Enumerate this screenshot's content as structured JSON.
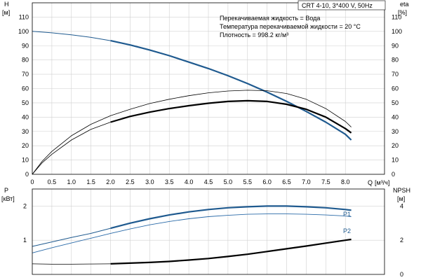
{
  "header": {
    "title": "CRT 4-10, 3*400 V, 50Hz",
    "liquid": "Перекачиваемая жидкость = Вода",
    "temperature": "Температура перекачиваемой жидкости = 20 °C",
    "density": "Плотность = 998.2 кг/м³"
  },
  "colors": {
    "primary": "#1f5a8f",
    "thin_primary": "#2a6aa8",
    "black": "#000000"
  },
  "chart_data": [
    {
      "type": "line",
      "panel": "head-efficiency",
      "xlabel": "Q [м³/ч]",
      "xlabel_text": "Q",
      "xlabel_unit": "[м³/ч]",
      "x_ticks": [
        "0",
        "0.5",
        "1.0",
        "1.5",
        "2.0",
        "2.5",
        "3.0",
        "3.5",
        "4.0",
        "4.5",
        "5.0",
        "5.5",
        "6.0",
        "6.5",
        "7.0",
        "7.5",
        "8.0"
      ],
      "xlim": [
        0,
        9
      ],
      "ylabel_left": "H",
      "ylabel_left_unit": "[м]",
      "ylabel_right": "eta",
      "ylabel_right_unit": "[%]",
      "ylim": [
        0,
        120
      ],
      "y_ticks": [
        "0",
        "10",
        "20",
        "30",
        "40",
        "50",
        "60",
        "70",
        "80",
        "90",
        "100",
        "110"
      ],
      "grid": true,
      "series": [
        {
          "name": "",
          "role": "H-extended",
          "color": "#1f5a8f",
          "width": 1,
          "x": [
            0,
            0.5,
            1.0,
            1.5,
            2.0
          ],
          "y": [
            100,
            99,
            97.6,
            95.8,
            93.5
          ]
        },
        {
          "name": "",
          "role": "H",
          "color": "#1f5a8f",
          "width": 2.2,
          "x": [
            2.0,
            2.5,
            3.0,
            3.5,
            4.0,
            4.5,
            5.0,
            5.5,
            6.0,
            6.5,
            7.0,
            7.5,
            8.0,
            8.15
          ],
          "y": [
            93.5,
            90.5,
            87,
            83,
            78.5,
            74,
            69,
            63.5,
            57.5,
            51,
            44,
            36.5,
            28,
            24
          ]
        },
        {
          "name": "",
          "role": "eta-thin",
          "color": "#000000",
          "width": 0.8,
          "x": [
            0,
            0.25,
            0.5,
            1.0,
            1.5,
            2.0,
            2.5,
            3.0,
            3.5,
            4.0,
            4.5,
            5.0,
            5.5,
            6.0,
            6.5,
            7.0,
            7.5,
            8.0,
            8.15
          ],
          "y": [
            0,
            9,
            16,
            27,
            35,
            41,
            45.5,
            49.5,
            52.5,
            55,
            57,
            58.3,
            58.8,
            58.5,
            56.5,
            52.5,
            46,
            37,
            33
          ]
        },
        {
          "name": "",
          "role": "eta-extended",
          "color": "#000000",
          "width": 0.8,
          "x": [
            0,
            0.25,
            0.5,
            1.0,
            1.5,
            2.0
          ],
          "y": [
            0,
            8,
            14,
            24,
            31.5,
            36.5
          ]
        },
        {
          "name": "",
          "role": "eta",
          "color": "#000000",
          "width": 2.2,
          "x": [
            2.0,
            2.5,
            3.0,
            3.5,
            4.0,
            4.5,
            5.0,
            5.5,
            6.0,
            6.5,
            7.0,
            7.5,
            8.0,
            8.15
          ],
          "y": [
            36.5,
            40.5,
            43.5,
            46,
            48,
            49.7,
            51,
            51.5,
            51,
            49,
            45.5,
            40,
            32,
            29
          ]
        }
      ]
    },
    {
      "type": "line",
      "panel": "power-npsh",
      "ylabel_left": "P",
      "ylabel_left_unit": "[кВт]",
      "ylabel_right": "NPSH",
      "ylabel_right_unit": "[м]",
      "xlim": [
        0,
        9
      ],
      "ylim_left": [
        0,
        2.5
      ],
      "ylim_right": [
        0,
        5
      ],
      "y_ticks_left": [
        "1",
        "2"
      ],
      "y_ticks_right": [
        "0",
        "2",
        "4"
      ],
      "grid": true,
      "series": [
        {
          "name": "P1",
          "color": "#1f5a8f",
          "width": 1,
          "axis": "left",
          "x": [
            0,
            0.5,
            1.0,
            1.5,
            2.0
          ],
          "y": [
            0.82,
            0.95,
            1.08,
            1.2,
            1.35
          ]
        },
        {
          "name": "P1",
          "color": "#1f5a8f",
          "width": 2.2,
          "axis": "left",
          "x": [
            2.0,
            2.5,
            3.0,
            3.5,
            4.0,
            4.5,
            5.0,
            5.5,
            6.0,
            6.5,
            7.0,
            7.5,
            8.0,
            8.15
          ],
          "y": [
            1.35,
            1.5,
            1.63,
            1.74,
            1.83,
            1.9,
            1.95,
            1.98,
            2.0,
            2.0,
            1.98,
            1.95,
            1.9,
            1.88
          ]
        },
        {
          "name": "P2",
          "color": "#2a6aa8",
          "width": 0.9,
          "axis": "left",
          "x": [
            0,
            0.5,
            1.0,
            1.5,
            2.0,
            2.5,
            3.0,
            3.5,
            4.0,
            4.5,
            5.0,
            5.5,
            6.0,
            6.5,
            7.0,
            7.5,
            8.0,
            8.15
          ],
          "y": [
            0.63,
            0.78,
            0.92,
            1.06,
            1.2,
            1.33,
            1.45,
            1.55,
            1.63,
            1.69,
            1.73,
            1.76,
            1.77,
            1.77,
            1.76,
            1.74,
            1.71,
            1.69
          ]
        },
        {
          "name": "",
          "role": "NPSH",
          "color": "#000000",
          "width": 0.8,
          "axis": "right",
          "x": [
            0,
            0.5,
            1.0,
            1.5,
            2.0
          ],
          "y": [
            0.62,
            0.6,
            0.6,
            0.61,
            0.62
          ]
        },
        {
          "name": "",
          "role": "NPSH",
          "color": "#000000",
          "width": 2.2,
          "axis": "right",
          "x": [
            2.0,
            2.5,
            3.0,
            3.5,
            4.0,
            4.5,
            5.0,
            5.5,
            6.0,
            6.5,
            7.0,
            7.5,
            8.0,
            8.15
          ],
          "y": [
            0.62,
            0.66,
            0.7,
            0.76,
            0.84,
            0.93,
            1.05,
            1.18,
            1.34,
            1.5,
            1.66,
            1.83,
            2.0,
            2.05
          ]
        }
      ],
      "labels": [
        "P1",
        "P2"
      ]
    }
  ]
}
